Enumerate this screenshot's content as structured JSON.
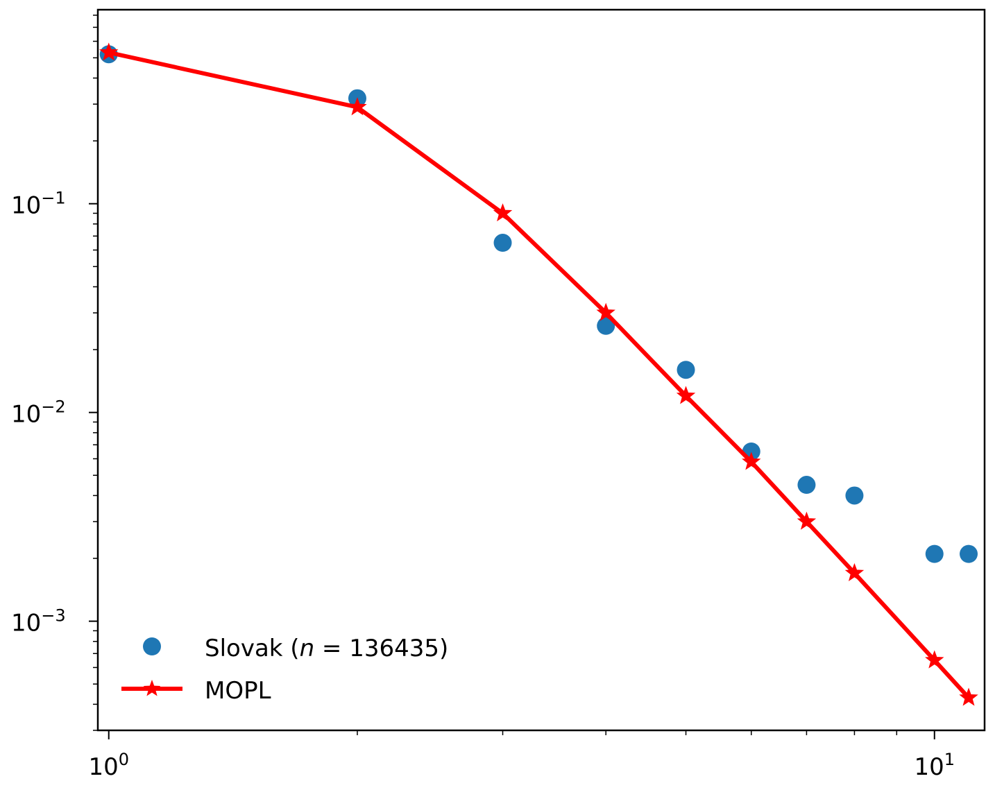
{
  "chart_data": {
    "type": "scatter",
    "title": "",
    "xlabel": "",
    "ylabel": "",
    "xscale": "log",
    "yscale": "log",
    "xlim": [
      0.97,
      11.5
    ],
    "ylim": [
      0.0003,
      0.85
    ],
    "grid": false,
    "legend_position": "lower-left",
    "x_major_ticks": [
      {
        "value": 1,
        "base": "10",
        "exp": "0"
      },
      {
        "value": 10,
        "base": "10",
        "exp": "1"
      }
    ],
    "y_major_ticks": [
      {
        "value": 0.1,
        "base": "10",
        "exp": "−1"
      },
      {
        "value": 0.01,
        "base": "10",
        "exp": "−2"
      },
      {
        "value": 0.001,
        "base": "10",
        "exp": "−3"
      }
    ],
    "series": [
      {
        "name": "Slovak",
        "legend_label_prefix": "Slovak (",
        "legend_label_math_var": "n",
        "legend_label_math_rest": " = 136435)",
        "style": "markers",
        "color": "#1f77b4",
        "x": [
          1,
          2,
          3,
          4,
          5,
          6,
          7,
          8,
          10,
          11
        ],
        "y": [
          0.52,
          0.32,
          0.065,
          0.026,
          0.016,
          0.0065,
          0.0045,
          0.004,
          0.0021,
          0.0021
        ]
      },
      {
        "name": "MOPL",
        "legend_label": "MOPL",
        "style": "line-star",
        "color": "#ff0000",
        "x": [
          1,
          2,
          3,
          4,
          5,
          6,
          7,
          8,
          10,
          11
        ],
        "y": [
          0.53,
          0.29,
          0.09,
          0.03,
          0.012,
          0.0058,
          0.003,
          0.0017,
          0.00065,
          0.00043
        ]
      }
    ]
  }
}
